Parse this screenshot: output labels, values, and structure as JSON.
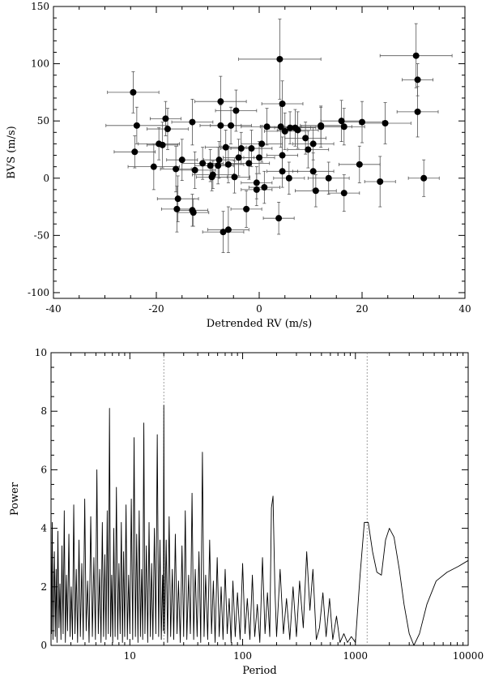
{
  "chart_data": [
    {
      "type": "scatter",
      "xlabel": "Detrended RV (m/s)",
      "ylabel": "BVS (m/s)",
      "xlim": [
        -40,
        40
      ],
      "ylim": [
        -105,
        150
      ],
      "x_ticks": [
        -40,
        -20,
        0,
        20,
        40
      ],
      "y_ticks": [
        -100,
        -50,
        0,
        50,
        100,
        150
      ],
      "error_bars": true,
      "points": [
        {
          "x": -24.5,
          "y": 75,
          "xerr": 5,
          "yerr": 18
        },
        {
          "x": -23.8,
          "y": 46,
          "xerr": 6,
          "yerr": 16
        },
        {
          "x": -24.2,
          "y": 23,
          "xerr": 4,
          "yerr": 14
        },
        {
          "x": -20.5,
          "y": 10,
          "xerr": 5,
          "yerr": 20
        },
        {
          "x": -19.5,
          "y": 30,
          "xerr": 4,
          "yerr": 14
        },
        {
          "x": -18.8,
          "y": 29,
          "xerr": 3,
          "yerr": 20
        },
        {
          "x": -18.2,
          "y": 52,
          "xerr": 3,
          "yerr": 15
        },
        {
          "x": -17.8,
          "y": 43,
          "xerr": 4,
          "yerr": 18
        },
        {
          "x": -16.2,
          "y": 8,
          "xerr": 3,
          "yerr": 20
        },
        {
          "x": -15.8,
          "y": -18,
          "xerr": 4,
          "yerr": 20
        },
        {
          "x": -16.0,
          "y": -27,
          "xerr": 3,
          "yerr": 20
        },
        {
          "x": -15.0,
          "y": 16,
          "xerr": 3,
          "yerr": 18
        },
        {
          "x": -13.0,
          "y": 49,
          "xerr": 4,
          "yerr": 20
        },
        {
          "x": -12.5,
          "y": 7,
          "xerr": 4,
          "yerr": 16
        },
        {
          "x": -13.0,
          "y": -28,
          "xerr": 3,
          "yerr": 14
        },
        {
          "x": -12.8,
          "y": -30,
          "xerr": 3,
          "yerr": 12
        },
        {
          "x": -11.0,
          "y": 13,
          "xerr": 4,
          "yerr": 14
        },
        {
          "x": -9.5,
          "y": 11,
          "xerr": 3,
          "yerr": 14
        },
        {
          "x": -9.0,
          "y": 3,
          "xerr": 4,
          "yerr": 12
        },
        {
          "x": -9.2,
          "y": 1,
          "xerr": 3,
          "yerr": 12
        },
        {
          "x": -8.0,
          "y": 11,
          "xerr": 3,
          "yerr": 16
        },
        {
          "x": -7.5,
          "y": 67,
          "xerr": 5,
          "yerr": 22
        },
        {
          "x": -7.5,
          "y": 46,
          "xerr": 4,
          "yerr": 18
        },
        {
          "x": -7.8,
          "y": 16,
          "xerr": 3,
          "yerr": 16
        },
        {
          "x": -6.5,
          "y": 27,
          "xerr": 4,
          "yerr": 15
        },
        {
          "x": -6.0,
          "y": 12,
          "xerr": 3,
          "yerr": 16
        },
        {
          "x": -7.0,
          "y": -47,
          "xerr": 4,
          "yerr": 18
        },
        {
          "x": -6.0,
          "y": -45,
          "xerr": 4,
          "yerr": 20
        },
        {
          "x": -5.5,
          "y": 46,
          "xerr": 4,
          "yerr": 16
        },
        {
          "x": -4.5,
          "y": 59,
          "xerr": 4,
          "yerr": 18
        },
        {
          "x": -4.0,
          "y": 18,
          "xerr": 3,
          "yerr": 16
        },
        {
          "x": -3.5,
          "y": 26,
          "xerr": 4,
          "yerr": 14
        },
        {
          "x": -4.8,
          "y": 1,
          "xerr": 3,
          "yerr": 14
        },
        {
          "x": -2.5,
          "y": -27,
          "xerr": 3,
          "yerr": 16
        },
        {
          "x": -2.0,
          "y": 13,
          "xerr": 4,
          "yerr": 14
        },
        {
          "x": -1.5,
          "y": 26,
          "xerr": 4,
          "yerr": 16
        },
        {
          "x": -0.5,
          "y": -4,
          "xerr": 3,
          "yerr": 14
        },
        {
          "x": -0.5,
          "y": -10,
          "xerr": 3,
          "yerr": 14
        },
        {
          "x": 0.0,
          "y": 18,
          "xerr": 3,
          "yerr": 14
        },
        {
          "x": 0.5,
          "y": 30,
          "xerr": 4,
          "yerr": 16
        },
        {
          "x": 1.0,
          "y": -8,
          "xerr": 3,
          "yerr": 14
        },
        {
          "x": 1.5,
          "y": 45,
          "xerr": 5,
          "yerr": 16
        },
        {
          "x": 4.0,
          "y": 104,
          "xerr": 8,
          "yerr": 35
        },
        {
          "x": 4.2,
          "y": 45,
          "xerr": 4,
          "yerr": 18
        },
        {
          "x": 4.5,
          "y": 65,
          "xerr": 4,
          "yerr": 20
        },
        {
          "x": 4.5,
          "y": 20,
          "xerr": 3,
          "yerr": 16
        },
        {
          "x": 4.5,
          "y": 6,
          "xerr": 3,
          "yerr": 14
        },
        {
          "x": 3.8,
          "y": -35,
          "xerr": 3,
          "yerr": 14
        },
        {
          "x": 5.0,
          "y": 41,
          "xerr": 4,
          "yerr": 16
        },
        {
          "x": 6.0,
          "y": 44,
          "xerr": 4,
          "yerr": 14
        },
        {
          "x": 5.8,
          "y": 0,
          "xerr": 3,
          "yerr": 14
        },
        {
          "x": 7.0,
          "y": 44,
          "xerr": 4,
          "yerr": 16
        },
        {
          "x": 7.5,
          "y": 42,
          "xerr": 4,
          "yerr": 16
        },
        {
          "x": 9.0,
          "y": 35,
          "xerr": 4,
          "yerr": 14
        },
        {
          "x": 9.5,
          "y": 25,
          "xerr": 4,
          "yerr": 16
        },
        {
          "x": 10.5,
          "y": 30,
          "xerr": 4,
          "yerr": 14
        },
        {
          "x": 10.5,
          "y": 6,
          "xerr": 4,
          "yerr": 16
        },
        {
          "x": 11.0,
          "y": -11,
          "xerr": 4,
          "yerr": 14
        },
        {
          "x": 12.0,
          "y": 45,
          "xerr": 6,
          "yerr": 18
        },
        {
          "x": 12.0,
          "y": 46,
          "xerr": 4,
          "yerr": 16
        },
        {
          "x": 13.5,
          "y": 0,
          "xerr": 4,
          "yerr": 14
        },
        {
          "x": 16.0,
          "y": 50,
          "xerr": 4,
          "yerr": 18
        },
        {
          "x": 16.5,
          "y": 45,
          "xerr": 4,
          "yerr": 16
        },
        {
          "x": 16.5,
          "y": -13,
          "xerr": 3,
          "yerr": 16
        },
        {
          "x": 19.5,
          "y": 12,
          "xerr": 4,
          "yerr": 16
        },
        {
          "x": 20.0,
          "y": 49,
          "xerr": 4,
          "yerr": 18
        },
        {
          "x": 23.5,
          "y": -3,
          "xerr": 3,
          "yerr": 22
        },
        {
          "x": 24.5,
          "y": 48,
          "xerr": 5,
          "yerr": 18
        },
        {
          "x": 30.5,
          "y": 107,
          "xerr": 7,
          "yerr": 28
        },
        {
          "x": 30.8,
          "y": 86,
          "xerr": 3,
          "yerr": 14
        },
        {
          "x": 30.8,
          "y": 58,
          "xerr": 4,
          "yerr": 22
        },
        {
          "x": 32.0,
          "y": 0,
          "xerr": 3,
          "yerr": 16
        }
      ]
    },
    {
      "type": "line",
      "xlabel": "Period",
      "ylabel": "Power",
      "xscale": "log",
      "xlim": [
        2,
        10000
      ],
      "ylim": [
        0,
        10
      ],
      "x_ticks": [
        10,
        100,
        1000,
        10000
      ],
      "y_ticks": [
        0,
        2,
        4,
        6,
        8,
        10
      ],
      "reference_lines_x": [
        20,
        1270
      ],
      "periodogram": [
        [
          2.0,
          3.5
        ],
        [
          2.02,
          0.4
        ],
        [
          2.05,
          4.2
        ],
        [
          2.08,
          0.2
        ],
        [
          2.1,
          1.4
        ],
        [
          2.14,
          3.2
        ],
        [
          2.18,
          0.3
        ],
        [
          2.22,
          2.6
        ],
        [
          2.26,
          0.1
        ],
        [
          2.3,
          3.9
        ],
        [
          2.35,
          0.6
        ],
        [
          2.4,
          2.1
        ],
        [
          2.45,
          0.2
        ],
        [
          2.5,
          3.4
        ],
        [
          2.56,
          0.4
        ],
        [
          2.62,
          4.6
        ],
        [
          2.68,
          0.1
        ],
        [
          2.74,
          2.4
        ],
        [
          2.8,
          0.5
        ],
        [
          2.88,
          3.8
        ],
        [
          2.95,
          0.3
        ],
        [
          3.02,
          2.0
        ],
        [
          3.1,
          0.2
        ],
        [
          3.18,
          4.8
        ],
        [
          3.26,
          0.4
        ],
        [
          3.35,
          2.6
        ],
        [
          3.44,
          0.1
        ],
        [
          3.54,
          3.6
        ],
        [
          3.64,
          0.3
        ],
        [
          3.75,
          2.8
        ],
        [
          3.86,
          0.2
        ],
        [
          3.98,
          5.0
        ],
        [
          4.1,
          0.5
        ],
        [
          4.22,
          2.2
        ],
        [
          4.35,
          0.1
        ],
        [
          4.5,
          4.4
        ],
        [
          4.65,
          0.3
        ],
        [
          4.8,
          3.0
        ],
        [
          4.95,
          0.2
        ],
        [
          5.1,
          6.0
        ],
        [
          5.25,
          0.4
        ],
        [
          5.4,
          2.6
        ],
        [
          5.55,
          0.1
        ],
        [
          5.7,
          4.2
        ],
        [
          5.85,
          0.3
        ],
        [
          6.0,
          3.1
        ],
        [
          6.15,
          0.2
        ],
        [
          6.3,
          4.6
        ],
        [
          6.45,
          0.4
        ],
        [
          6.6,
          8.1
        ],
        [
          6.75,
          0.3
        ],
        [
          6.9,
          2.4
        ],
        [
          7.05,
          0.1
        ],
        [
          7.2,
          4.0
        ],
        [
          7.4,
          0.3
        ],
        [
          7.6,
          5.4
        ],
        [
          7.8,
          0.2
        ],
        [
          8.0,
          2.8
        ],
        [
          8.2,
          0.4
        ],
        [
          8.4,
          4.2
        ],
        [
          8.6,
          0.1
        ],
        [
          8.8,
          3.2
        ],
        [
          9.0,
          0.3
        ],
        [
          9.25,
          4.8
        ],
        [
          9.5,
          0.2
        ],
        [
          9.75,
          2.4
        ],
        [
          10.0,
          0.4
        ],
        [
          10.3,
          5.0
        ],
        [
          10.6,
          0.2
        ],
        [
          10.9,
          7.1
        ],
        [
          11.2,
          0.3
        ],
        [
          11.5,
          3.8
        ],
        [
          11.8,
          0.1
        ],
        [
          12.1,
          4.6
        ],
        [
          12.4,
          0.3
        ],
        [
          12.7,
          2.6
        ],
        [
          13.0,
          0.2
        ],
        [
          13.3,
          7.6
        ],
        [
          13.6,
          0.4
        ],
        [
          14.0,
          3.4
        ],
        [
          14.4,
          0.1
        ],
        [
          14.8,
          4.2
        ],
        [
          15.2,
          0.3
        ],
        [
          15.6,
          2.8
        ],
        [
          16.0,
          0.2
        ],
        [
          16.5,
          4.0
        ],
        [
          17.0,
          0.4
        ],
        [
          17.5,
          7.2
        ],
        [
          18.0,
          0.3
        ],
        [
          18.5,
          3.6
        ],
        [
          19.0,
          0.2
        ],
        [
          19.5,
          2.4
        ],
        [
          19.8,
          0.5
        ],
        [
          20.0,
          8.2
        ],
        [
          20.3,
          0.4
        ],
        [
          21.0,
          3.6
        ],
        [
          21.6,
          0.1
        ],
        [
          22.3,
          4.4
        ],
        [
          23.0,
          0.3
        ],
        [
          23.8,
          2.6
        ],
        [
          24.5,
          0.2
        ],
        [
          25.3,
          3.8
        ],
        [
          26.2,
          0.4
        ],
        [
          27.0,
          2.2
        ],
        [
          28.0,
          0.1
        ],
        [
          29.0,
          3.4
        ],
        [
          30.0,
          0.3
        ],
        [
          31.0,
          4.6
        ],
        [
          32.0,
          0.2
        ],
        [
          33.2,
          2.4
        ],
        [
          34.4,
          0.4
        ],
        [
          35.6,
          5.2
        ],
        [
          36.8,
          0.2
        ],
        [
          38.0,
          2.6
        ],
        [
          39.5,
          0.3
        ],
        [
          41.0,
          3.2
        ],
        [
          42.5,
          0.1
        ],
        [
          44.0,
          6.6
        ],
        [
          45.5,
          0.3
        ],
        [
          47.0,
          2.4
        ],
        [
          49.0,
          0.2
        ],
        [
          51.0,
          3.6
        ],
        [
          53.0,
          0.4
        ],
        [
          55.0,
          2.2
        ],
        [
          57.0,
          0.1
        ],
        [
          59.5,
          3.0
        ],
        [
          62.0,
          0.3
        ],
        [
          64.5,
          2.0
        ],
        [
          67.0,
          0.2
        ],
        [
          70.0,
          2.6
        ],
        [
          73.0,
          0.4
        ],
        [
          76.0,
          1.6
        ],
        [
          79.0,
          0.1
        ],
        [
          82.0,
          2.2
        ],
        [
          86.0,
          0.3
        ],
        [
          90.0,
          1.8
        ],
        [
          95.0,
          0.2
        ],
        [
          100.0,
          2.8
        ],
        [
          105.0,
          0.4
        ],
        [
          110.0,
          1.6
        ],
        [
          116.0,
          0.2
        ],
        [
          122.0,
          2.4
        ],
        [
          128.0,
          0.3
        ],
        [
          135.0,
          1.4
        ],
        [
          142.0,
          0.1
        ],
        [
          150.0,
          3.0
        ],
        [
          158.0,
          0.4
        ],
        [
          166.0,
          1.8
        ],
        [
          174.0,
          0.3
        ],
        [
          180.0,
          4.7
        ],
        [
          186.0,
          5.1
        ],
        [
          193.0,
          2.0
        ],
        [
          200.0,
          0.3
        ],
        [
          215.0,
          2.6
        ],
        [
          230.0,
          0.4
        ],
        [
          245.0,
          1.6
        ],
        [
          262.0,
          0.2
        ],
        [
          280.0,
          2.0
        ],
        [
          300.0,
          0.3
        ],
        [
          320.0,
          2.2
        ],
        [
          345.0,
          0.6
        ],
        [
          370.0,
          3.2
        ],
        [
          395.0,
          1.2
        ],
        [
          420.0,
          2.6
        ],
        [
          450.0,
          0.2
        ],
        [
          480.0,
          0.6
        ],
        [
          515.0,
          1.8
        ],
        [
          550.0,
          0.3
        ],
        [
          590.0,
          1.6
        ],
        [
          630.0,
          0.2
        ],
        [
          680.0,
          1.0
        ],
        [
          730.0,
          0.1
        ],
        [
          790.0,
          0.4
        ],
        [
          850.0,
          0.1
        ],
        [
          920.0,
          0.3
        ],
        [
          1000.0,
          0.1
        ],
        [
          1100.0,
          2.4
        ],
        [
          1200.0,
          4.2
        ],
        [
          1300.0,
          4.2
        ],
        [
          1420.0,
          3.2
        ],
        [
          1550.0,
          2.5
        ],
        [
          1700.0,
          2.4
        ],
        [
          1850.0,
          3.6
        ],
        [
          2000.0,
          4.0
        ],
        [
          2200.0,
          3.7
        ],
        [
          2450.0,
          2.6
        ],
        [
          2700.0,
          1.4
        ],
        [
          3000.0,
          0.4
        ],
        [
          3300.0,
          0.0
        ],
        [
          3700.0,
          0.4
        ],
        [
          4300.0,
          1.4
        ],
        [
          5200.0,
          2.2
        ],
        [
          6500.0,
          2.5
        ],
        [
          8200.0,
          2.7
        ],
        [
          10000.0,
          2.9
        ]
      ]
    }
  ]
}
